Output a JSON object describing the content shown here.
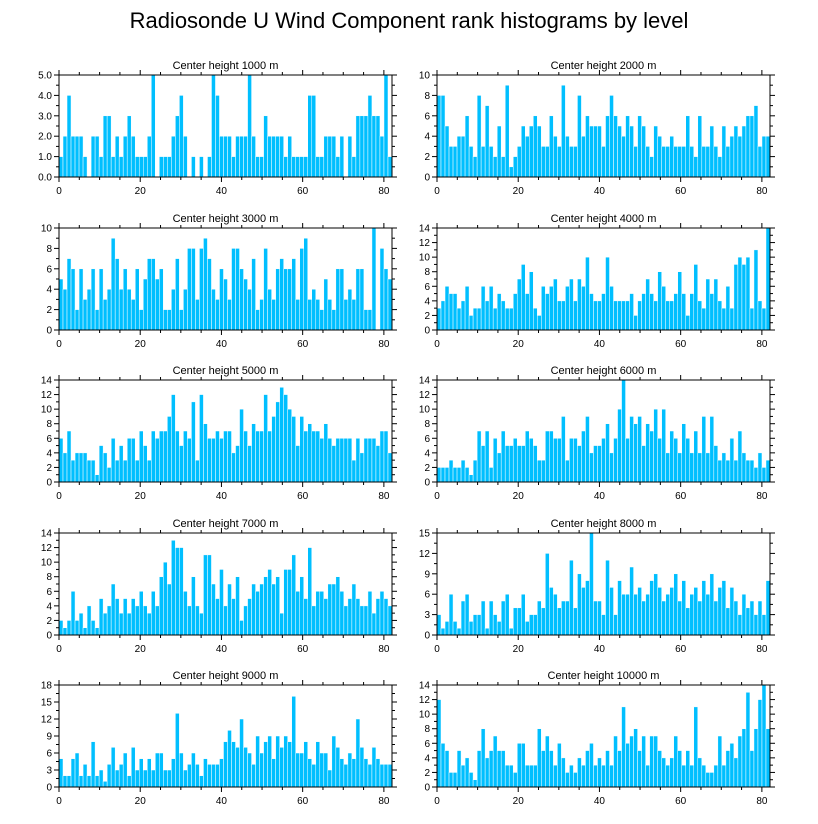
{
  "page": {
    "title": "Radiosonde U Wind Component rank histograms by level"
  },
  "style": {
    "bar_color": "#00BFFF",
    "bar_stroke": "#FFFFFF",
    "axis_color": "#000000"
  },
  "chart_data": [
    {
      "type": "bar",
      "title": "Center height 1000 m",
      "xlabel": "",
      "ylabel": "",
      "xlim": [
        0,
        82
      ],
      "ylim": [
        0,
        5
      ],
      "y_ticks": [
        0,
        1,
        2,
        3,
        4,
        5
      ],
      "y_tick_format": "decimal1",
      "x_ticks": [
        0,
        20,
        40,
        60,
        80
      ],
      "values": [
        1,
        2,
        4,
        2,
        2,
        2,
        1,
        0,
        2,
        2,
        1,
        3,
        3,
        1,
        2,
        1,
        2,
        3,
        2,
        1,
        1,
        1,
        2,
        5,
        0,
        1,
        1,
        1,
        2,
        3,
        4,
        2,
        0,
        1,
        0,
        1,
        0,
        1,
        5,
        4,
        2,
        2,
        2,
        1,
        2,
        2,
        2,
        5,
        2,
        1,
        1,
        3,
        2,
        2,
        2,
        2,
        1,
        2,
        1,
        1,
        1,
        1,
        4,
        4,
        1,
        1,
        2,
        2,
        2,
        1,
        2,
        0,
        2,
        1,
        3,
        3,
        3,
        4,
        3,
        3,
        2,
        5,
        1
      ]
    },
    {
      "type": "bar",
      "title": "Center height 2000 m",
      "xlabel": "",
      "ylabel": "",
      "xlim": [
        0,
        82
      ],
      "ylim": [
        0,
        10
      ],
      "y_ticks": [
        0,
        2,
        4,
        6,
        8,
        10
      ],
      "y_tick_format": "int",
      "x_ticks": [
        0,
        20,
        40,
        60,
        80
      ],
      "values": [
        8,
        8,
        5,
        3,
        3,
        4,
        4,
        6,
        3,
        2,
        8,
        3,
        7,
        3,
        2,
        5,
        2,
        9,
        1,
        2,
        3,
        5,
        4,
        5,
        6,
        5,
        3,
        3,
        6,
        4,
        3,
        9,
        4,
        3,
        3,
        8,
        4,
        6,
        5,
        5,
        5,
        3,
        6,
        8,
        6,
        5,
        4,
        6,
        5,
        3,
        6,
        5,
        3,
        2,
        5,
        4,
        3,
        3,
        4,
        3,
        3,
        3,
        6,
        3,
        2,
        6,
        3,
        3,
        5,
        3,
        2,
        5,
        3,
        4,
        5,
        4,
        5,
        6,
        6,
        7,
        3,
        4,
        4
      ]
    },
    {
      "type": "bar",
      "title": "Center height 3000 m",
      "xlabel": "",
      "ylabel": "",
      "xlim": [
        0,
        82
      ],
      "ylim": [
        0,
        10
      ],
      "y_ticks": [
        0,
        2,
        4,
        6,
        8,
        10
      ],
      "y_tick_format": "int",
      "x_ticks": [
        0,
        20,
        40,
        60,
        80
      ],
      "values": [
        5,
        4,
        7,
        6,
        2,
        6,
        3,
        4,
        6,
        2,
        6,
        3,
        4,
        9,
        7,
        4,
        6,
        4,
        3,
        6,
        2,
        5,
        7,
        7,
        5,
        6,
        2,
        2,
        4,
        7,
        2,
        4,
        8,
        8,
        3,
        8,
        9,
        7,
        4,
        3,
        6,
        5,
        3,
        8,
        8,
        6,
        5,
        4,
        7,
        2,
        3,
        8,
        4,
        3,
        6,
        7,
        6,
        6,
        7,
        3,
        8,
        9,
        3,
        4,
        3,
        2,
        5,
        3,
        2,
        6,
        6,
        3,
        4,
        3,
        6,
        6,
        2,
        2,
        10,
        0,
        8,
        6,
        5
      ]
    },
    {
      "type": "bar",
      "title": "Center height 4000 m",
      "xlabel": "",
      "ylabel": "",
      "xlim": [
        0,
        82
      ],
      "ylim": [
        0,
        14
      ],
      "y_ticks": [
        0,
        2,
        4,
        6,
        8,
        10,
        12,
        14
      ],
      "y_tick_format": "int",
      "x_ticks": [
        0,
        20,
        40,
        60,
        80
      ],
      "values": [
        3,
        4,
        6,
        5,
        5,
        3,
        4,
        6,
        2,
        3,
        3,
        6,
        4,
        6,
        3,
        5,
        4,
        3,
        3,
        5,
        7,
        9,
        5,
        8,
        3,
        2,
        6,
        5,
        6,
        7,
        4,
        4,
        6,
        7,
        4,
        7,
        6,
        10,
        5,
        4,
        4,
        5,
        10,
        6,
        4,
        4,
        4,
        4,
        5,
        2,
        4,
        5,
        7,
        5,
        4,
        8,
        6,
        4,
        4,
        5,
        8,
        5,
        2,
        5,
        9,
        4,
        3,
        7,
        5,
        7,
        4,
        3,
        6,
        3,
        9,
        10,
        9,
        10,
        3,
        11,
        4,
        3,
        14
      ]
    },
    {
      "type": "bar",
      "title": "Center height 5000 m",
      "xlabel": "",
      "ylabel": "",
      "xlim": [
        0,
        82
      ],
      "ylim": [
        0,
        14
      ],
      "y_ticks": [
        0,
        2,
        4,
        6,
        8,
        10,
        12,
        14
      ],
      "y_tick_format": "int",
      "x_ticks": [
        0,
        20,
        40,
        60,
        80
      ],
      "values": [
        6,
        4,
        7,
        3,
        4,
        4,
        4,
        3,
        3,
        1,
        5,
        4,
        2,
        6,
        3,
        5,
        3,
        6,
        6,
        3,
        7,
        5,
        3,
        7,
        6,
        7,
        7,
        9,
        12,
        7,
        5,
        7,
        6,
        11,
        3,
        12,
        8,
        6,
        6,
        7,
        6,
        7,
        7,
        4,
        5,
        10,
        7,
        5,
        8,
        7,
        7,
        12,
        7,
        9,
        11,
        13,
        12,
        10,
        9,
        5,
        9,
        7,
        8,
        7,
        7,
        6,
        8,
        6,
        5,
        6,
        6,
        6,
        6,
        3,
        6,
        4,
        6,
        6,
        6,
        5,
        7,
        7,
        4
      ]
    },
    {
      "type": "bar",
      "title": "Center height 6000 m",
      "xlabel": "",
      "ylabel": "",
      "xlim": [
        0,
        82
      ],
      "ylim": [
        0,
        14
      ],
      "y_ticks": [
        0,
        2,
        4,
        6,
        8,
        10,
        12,
        14
      ],
      "y_tick_format": "int",
      "x_ticks": [
        0,
        20,
        40,
        60,
        80
      ],
      "values": [
        2,
        2,
        2,
        3,
        2,
        2,
        3,
        2,
        1,
        3,
        7,
        5,
        7,
        2,
        6,
        4,
        7,
        5,
        5,
        6,
        5,
        5,
        7,
        6,
        5,
        3,
        3,
        7,
        7,
        6,
        6,
        9,
        3,
        6,
        6,
        5,
        7,
        9,
        4,
        5,
        5,
        6,
        8,
        4,
        6,
        10,
        14,
        6,
        9,
        8,
        9,
        5,
        8,
        7,
        10,
        6,
        10,
        4,
        7,
        6,
        4,
        8,
        6,
        4,
        7,
        4,
        9,
        4,
        9,
        5,
        3,
        4,
        3,
        6,
        3,
        7,
        4,
        3,
        3,
        2,
        4,
        2,
        3
      ]
    },
    {
      "type": "bar",
      "title": "Center height 7000 m",
      "xlabel": "",
      "ylabel": "",
      "xlim": [
        0,
        82
      ],
      "ylim": [
        0,
        14
      ],
      "y_ticks": [
        0,
        2,
        4,
        6,
        8,
        10,
        12,
        14
      ],
      "y_tick_format": "int",
      "x_ticks": [
        0,
        20,
        40,
        60,
        80
      ],
      "values": [
        2,
        1,
        2,
        6,
        2,
        3,
        1,
        4,
        2,
        1,
        5,
        3,
        4,
        7,
        5,
        3,
        5,
        3,
        5,
        4,
        6,
        4,
        3,
        6,
        4,
        8,
        10,
        7,
        13,
        12,
        12,
        6,
        4,
        8,
        4,
        3,
        11,
        11,
        7,
        5,
        9,
        4,
        7,
        5,
        8,
        2,
        4,
        5,
        7,
        6,
        7,
        8,
        9,
        7,
        8,
        3,
        9,
        9,
        11,
        6,
        8,
        5,
        12,
        4,
        6,
        6,
        5,
        7,
        7,
        8,
        6,
        4,
        5,
        7,
        5,
        4,
        4,
        6,
        3,
        5,
        6,
        5,
        4
      ]
    },
    {
      "type": "bar",
      "title": "Center height 8000 m",
      "xlabel": "",
      "ylabel": "",
      "xlim": [
        0,
        82
      ],
      "ylim": [
        0,
        15
      ],
      "y_ticks": [
        0,
        3,
        6,
        9,
        12,
        15
      ],
      "y_tick_format": "int",
      "x_ticks": [
        0,
        20,
        40,
        60,
        80
      ],
      "values": [
        3,
        1,
        2,
        6,
        2,
        1,
        5,
        6,
        2,
        3,
        3,
        5,
        1,
        5,
        3,
        2,
        5,
        6,
        1,
        4,
        4,
        6,
        2,
        3,
        3,
        5,
        4,
        12,
        7,
        6,
        4,
        5,
        5,
        11,
        4,
        9,
        7,
        8,
        15,
        5,
        5,
        3,
        11,
        7,
        3,
        8,
        6,
        6,
        10,
        6,
        7,
        5,
        6,
        8,
        9,
        7,
        5,
        6,
        7,
        9,
        5,
        8,
        4,
        6,
        7,
        5,
        8,
        6,
        9,
        5,
        7,
        8,
        4,
        7,
        5,
        3,
        6,
        4,
        5,
        3,
        5,
        3,
        8
      ]
    },
    {
      "type": "bar",
      "title": "Center height 9000 m",
      "xlabel": "",
      "ylabel": "",
      "xlim": [
        0,
        82
      ],
      "ylim": [
        0,
        18
      ],
      "y_ticks": [
        0,
        3,
        6,
        9,
        12,
        15,
        18
      ],
      "y_tick_format": "int",
      "x_ticks": [
        0,
        20,
        40,
        60,
        80
      ],
      "values": [
        5,
        2,
        2,
        5,
        6,
        2,
        4,
        2,
        8,
        2,
        3,
        1,
        4,
        7,
        3,
        4,
        6,
        2,
        7,
        3,
        5,
        3,
        5,
        3,
        6,
        6,
        3,
        3,
        5,
        13,
        6,
        3,
        4,
        6,
        4,
        2,
        5,
        4,
        4,
        4,
        5,
        8,
        10,
        8,
        7,
        12,
        7,
        6,
        4,
        9,
        6,
        8,
        9,
        5,
        9,
        7,
        9,
        8,
        16,
        6,
        6,
        8,
        5,
        4,
        8,
        6,
        6,
        3,
        9,
        7,
        5,
        4,
        6,
        5,
        12,
        7,
        5,
        4,
        7,
        5,
        4,
        4,
        4
      ]
    },
    {
      "type": "bar",
      "title": "Center height 10000 m",
      "xlabel": "",
      "ylabel": "",
      "xlim": [
        0,
        82
      ],
      "ylim": [
        0,
        14
      ],
      "y_ticks": [
        0,
        2,
        4,
        6,
        8,
        10,
        12,
        14
      ],
      "y_tick_format": "int",
      "x_ticks": [
        0,
        20,
        40,
        60,
        80
      ],
      "values": [
        12,
        6,
        5,
        2,
        2,
        5,
        3,
        4,
        2,
        1,
        5,
        8,
        4,
        5,
        7,
        5,
        5,
        3,
        3,
        2,
        6,
        6,
        3,
        3,
        3,
        8,
        5,
        7,
        5,
        3,
        6,
        4,
        2,
        3,
        2,
        4,
        3,
        5,
        6,
        3,
        4,
        3,
        5,
        3,
        7,
        5,
        11,
        6,
        7,
        8,
        5,
        7,
        3,
        7,
        7,
        5,
        4,
        3,
        4,
        7,
        5,
        3,
        5,
        3,
        11,
        4,
        3,
        2,
        2,
        3,
        7,
        3,
        5,
        6,
        4,
        7,
        8,
        13,
        5,
        8,
        12,
        14,
        8
      ]
    }
  ]
}
